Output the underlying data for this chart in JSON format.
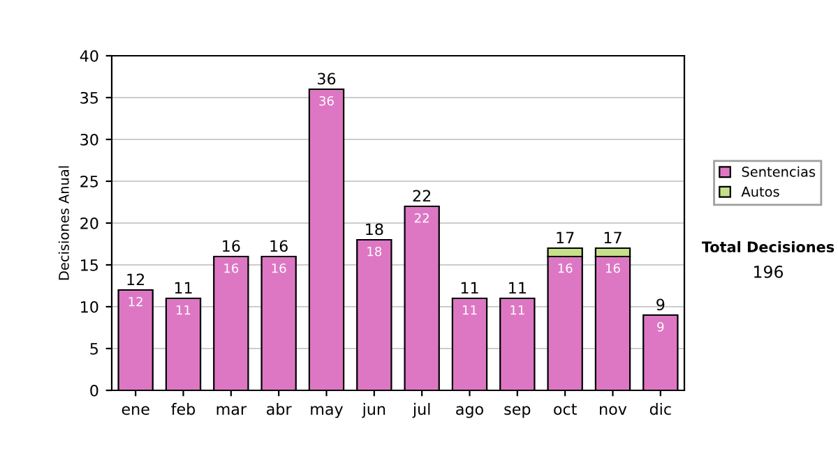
{
  "chart_data": {
    "type": "bar",
    "stacked": true,
    "ylabel": "Decisiones Anual",
    "categories": [
      "ene",
      "feb",
      "mar",
      "abr",
      "may",
      "jun",
      "jul",
      "ago",
      "sep",
      "oct",
      "nov",
      "dic"
    ],
    "series": [
      {
        "name": "Sentencias",
        "color": "#dd77c4",
        "values": [
          12,
          11,
          16,
          16,
          36,
          18,
          22,
          11,
          11,
          16,
          16,
          9
        ],
        "value_labels": [
          "12",
          "11",
          "16",
          "16",
          "36",
          "18",
          "22",
          "11",
          "11",
          "16",
          "16",
          "9"
        ]
      },
      {
        "name": "Autos",
        "color": "#c6e08a",
        "values": [
          null,
          null,
          null,
          null,
          null,
          null,
          null,
          null,
          null,
          1,
          1,
          null
        ]
      }
    ],
    "totals": [
      "12",
      "11",
      "16",
      "16",
      "36",
      "18",
      "22",
      "11",
      "11",
      "17",
      "17",
      "9"
    ],
    "ylim": [
      0,
      40
    ],
    "yticks": [
      0,
      5,
      10,
      15,
      20,
      25,
      30,
      35,
      40
    ],
    "grid": "y",
    "legend": "right",
    "annotations": [
      "Total Decisiones",
      "196"
    ]
  }
}
